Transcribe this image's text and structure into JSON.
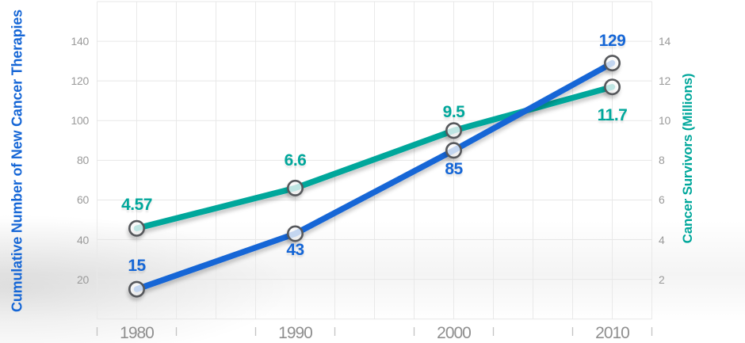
{
  "chart_data": {
    "type": "line",
    "x": [
      1980,
      1990,
      2000,
      2010
    ],
    "x_tick_labels": [
      "1980",
      "1990",
      "2000",
      "2010"
    ],
    "series": [
      {
        "name": "Cumulative Number of New Cancer Therapies",
        "axis": "left",
        "color": "#1566d6",
        "marker": "open-circle",
        "values": [
          15,
          43,
          85,
          129
        ],
        "point_labels": [
          "15",
          "43",
          "85",
          "129"
        ],
        "label_side": [
          "above",
          "below",
          "below",
          "above"
        ],
        "label_dy": [
          -40,
          10,
          13,
          -39
        ]
      },
      {
        "name": "Cancer Survivors (Millions)",
        "axis": "right",
        "color": "#00a79b",
        "marker": "open-circle",
        "values": [
          4.57,
          6.6,
          9.5,
          11.7
        ],
        "point_labels": [
          "4.57",
          "6.6",
          "9.5",
          "11.7"
        ],
        "label_side": [
          "above",
          "above",
          "above",
          "below"
        ],
        "label_dy": [
          -40,
          -45,
          -34,
          25
        ]
      }
    ],
    "left_axis": {
      "label": "Cumulative Number of New Cancer Therapies",
      "color": "#1566d6",
      "ticks": [
        20,
        40,
        60,
        80,
        100,
        120,
        140
      ],
      "range": [
        0,
        160
      ]
    },
    "right_axis": {
      "label": "Cancer Survivors (Millions)",
      "color": "#00a79b",
      "ticks": [
        2,
        4,
        6,
        8,
        10,
        12,
        14
      ],
      "range": [
        0,
        16
      ]
    },
    "grid": true,
    "legend": "none",
    "colors": {
      "grid_line": "#e9e9e9",
      "axis_tick_text": "#9a9a9a",
      "x_tick_text": "#8f8f8f",
      "x_tick_mark": "#c3c3c3",
      "marker_ring": "#57595b"
    }
  }
}
